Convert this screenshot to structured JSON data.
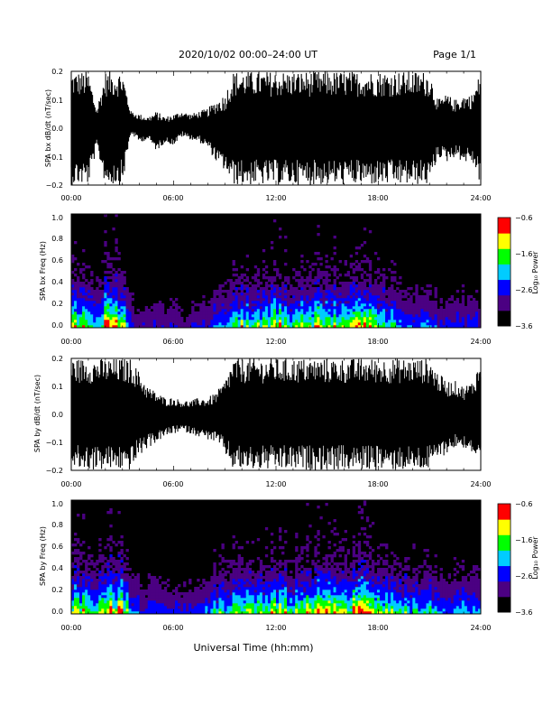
{
  "header": {
    "title": "2020/10/02  00:00–24:00 UT",
    "page": "Page 1/1"
  },
  "footer": {
    "xlabel": "Universal Time (hh:mm)"
  },
  "chart_data": [
    {
      "type": "line",
      "ylabel": "SPA bx dB/dt (nT/sec)",
      "xlabel": "",
      "xticks": [
        "00:00",
        "06:00",
        "12:00",
        "18:00",
        "24:00"
      ],
      "xlim": [
        0,
        24
      ],
      "ylim": [
        -0.2,
        0.2
      ],
      "yticks": [
        "0.2",
        "0.1",
        "0.0",
        "−0.1",
        "−0.2"
      ],
      "envelope": {
        "x": [
          0,
          0.5,
          1,
          1.5,
          2,
          2.5,
          3,
          3.5,
          4,
          4.5,
          5,
          5.5,
          6,
          6.5,
          7,
          7.5,
          8,
          8.5,
          9,
          9.5,
          10,
          10.5,
          11,
          11.5,
          12,
          12.5,
          13,
          13.5,
          14,
          14.5,
          15,
          15.5,
          16,
          16.5,
          17,
          17.5,
          18,
          18.5,
          19,
          19.5,
          20,
          20.5,
          21,
          21.5,
          22,
          22.5,
          23,
          23.5,
          24
        ],
        "upper": [
          0.2,
          0.2,
          0.2,
          0.07,
          0.2,
          0.2,
          0.2,
          0.06,
          0.05,
          0.04,
          0.06,
          0.04,
          0.05,
          0.06,
          0.05,
          0.06,
          0.07,
          0.1,
          0.12,
          0.2,
          0.2,
          0.2,
          0.2,
          0.2,
          0.2,
          0.2,
          0.2,
          0.2,
          0.2,
          0.2,
          0.2,
          0.2,
          0.2,
          0.2,
          0.2,
          0.2,
          0.2,
          0.2,
          0.2,
          0.2,
          0.2,
          0.2,
          0.2,
          0.1,
          0.12,
          0.1,
          0.12,
          0.12,
          0.2
        ],
        "lower": [
          -0.2,
          -0.2,
          -0.2,
          -0.07,
          -0.2,
          -0.2,
          -0.2,
          -0.02,
          -0.05,
          -0.04,
          -0.08,
          -0.05,
          -0.06,
          -0.03,
          -0.04,
          -0.05,
          -0.07,
          -0.12,
          -0.15,
          -0.2,
          -0.2,
          -0.2,
          -0.2,
          -0.2,
          -0.2,
          -0.2,
          -0.2,
          -0.2,
          -0.2,
          -0.2,
          -0.2,
          -0.2,
          -0.2,
          -0.2,
          -0.2,
          -0.2,
          -0.2,
          -0.2,
          -0.2,
          -0.2,
          -0.2,
          -0.2,
          -0.2,
          -0.1,
          -0.12,
          -0.1,
          -0.12,
          -0.12,
          -0.2
        ]
      }
    },
    {
      "type": "heatmap",
      "ylabel": "SPA bx Freq (Hz)",
      "xlabel": "",
      "xticks": [
        "00:00",
        "06:00",
        "12:00",
        "18:00",
        "24:00"
      ],
      "xlim": [
        0,
        24
      ],
      "ylim": [
        0,
        1
      ],
      "yticks": [
        "1.0",
        "0.8",
        "0.6",
        "0.4",
        "0.2",
        "0.0"
      ],
      "colorbar": {
        "label": "Log₁₀ Power",
        "ticks": [
          "−0.6",
          "−1.6",
          "−2.6",
          "−3.6"
        ],
        "range": [
          -3.6,
          -0.6
        ]
      },
      "colors": [
        "#000000",
        "#4b0082",
        "#0000ff",
        "#00ccff",
        "#00ff00",
        "#ffff00",
        "#ff0000"
      ],
      "activity": {
        "x": [
          0,
          0.5,
          1,
          1.5,
          2,
          2.5,
          3,
          3.5,
          4,
          4.5,
          5,
          5.5,
          6,
          6.5,
          7,
          7.5,
          8,
          8.5,
          9,
          9.5,
          10,
          10.5,
          11,
          11.5,
          12,
          12.5,
          13,
          13.5,
          14,
          14.5,
          15,
          15.5,
          16,
          16.5,
          17,
          17.5,
          18,
          18.5,
          19,
          19.5,
          20,
          20.5,
          21,
          21.5,
          22,
          22.5,
          23,
          23.5,
          24
        ],
        "level": [
          0.7,
          0.9,
          0.6,
          0.4,
          0.95,
          1.0,
          0.85,
          0.3,
          0.25,
          0.2,
          0.3,
          0.2,
          0.25,
          0.2,
          0.2,
          0.25,
          0.3,
          0.45,
          0.5,
          0.6,
          0.7,
          0.65,
          0.6,
          0.7,
          0.8,
          0.7,
          0.6,
          0.7,
          0.75,
          0.8,
          0.8,
          0.75,
          0.8,
          0.85,
          0.9,
          0.85,
          0.7,
          0.6,
          0.5,
          0.35,
          0.35,
          0.35,
          0.4,
          0.3,
          0.3,
          0.3,
          0.3,
          0.3,
          0.3
        ]
      }
    },
    {
      "type": "line",
      "ylabel": "SPA by dB/dt (nT/sec)",
      "xlabel": "",
      "xticks": [
        "00:00",
        "06:00",
        "12:00",
        "18:00",
        "24:00"
      ],
      "xlim": [
        0,
        24
      ],
      "ylim": [
        -0.2,
        0.2
      ],
      "yticks": [
        "0.2",
        "0.1",
        "0.0",
        "−0.1",
        "−0.2"
      ],
      "envelope": {
        "x": [
          0,
          0.5,
          1,
          1.5,
          2,
          2.5,
          3,
          3.5,
          4,
          4.5,
          5,
          5.5,
          6,
          6.5,
          7,
          7.5,
          8,
          8.5,
          9,
          9.5,
          10,
          10.5,
          11,
          11.5,
          12,
          12.5,
          13,
          13.5,
          14,
          14.5,
          15,
          15.5,
          16,
          16.5,
          17,
          17.5,
          18,
          18.5,
          19,
          19.5,
          20,
          20.5,
          21,
          21.5,
          22,
          22.5,
          23,
          23.5,
          24
        ],
        "upper": [
          0.2,
          0.2,
          0.2,
          0.2,
          0.2,
          0.2,
          0.2,
          0.2,
          0.15,
          0.1,
          0.08,
          0.06,
          0.06,
          0.05,
          0.05,
          0.06,
          0.06,
          0.08,
          0.12,
          0.2,
          0.2,
          0.2,
          0.2,
          0.2,
          0.2,
          0.2,
          0.2,
          0.2,
          0.2,
          0.2,
          0.2,
          0.2,
          0.2,
          0.2,
          0.2,
          0.2,
          0.2,
          0.2,
          0.2,
          0.2,
          0.2,
          0.2,
          0.2,
          0.15,
          0.12,
          0.12,
          0.1,
          0.12,
          0.2
        ],
        "lower": [
          -0.2,
          -0.2,
          -0.2,
          -0.2,
          -0.2,
          -0.2,
          -0.2,
          -0.2,
          -0.15,
          -0.12,
          -0.1,
          -0.08,
          -0.07,
          -0.06,
          -0.07,
          -0.08,
          -0.09,
          -0.1,
          -0.14,
          -0.2,
          -0.2,
          -0.2,
          -0.2,
          -0.2,
          -0.2,
          -0.2,
          -0.2,
          -0.2,
          -0.2,
          -0.2,
          -0.2,
          -0.2,
          -0.2,
          -0.2,
          -0.2,
          -0.2,
          -0.2,
          -0.2,
          -0.2,
          -0.2,
          -0.2,
          -0.2,
          -0.2,
          -0.16,
          -0.14,
          -0.12,
          -0.12,
          -0.14,
          -0.2
        ]
      }
    },
    {
      "type": "heatmap",
      "ylabel": "SPA by Freq (Hz)",
      "xlabel": "",
      "xticks": [
        "00:00",
        "06:00",
        "12:00",
        "18:00",
        "24:00"
      ],
      "xlim": [
        0,
        24
      ],
      "ylim": [
        0,
        1
      ],
      "yticks": [
        "1.0",
        "0.8",
        "0.6",
        "0.4",
        "0.2",
        "0.0"
      ],
      "colorbar": {
        "label": "Log₁₀ Power",
        "ticks": [
          "−0.6",
          "−1.6",
          "−2.6",
          "−3.6"
        ],
        "range": [
          -3.6,
          -0.6
        ]
      },
      "colors": [
        "#000000",
        "#4b0082",
        "#0000ff",
        "#00ccff",
        "#00ff00",
        "#ffff00",
        "#ff0000"
      ],
      "activity": {
        "x": [
          0,
          0.5,
          1,
          1.5,
          2,
          2.5,
          3,
          3.5,
          4,
          4.5,
          5,
          5.5,
          6,
          6.5,
          7,
          7.5,
          8,
          8.5,
          9,
          9.5,
          10,
          10.5,
          11,
          11.5,
          12,
          12.5,
          13,
          13.5,
          14,
          14.5,
          15,
          15.5,
          16,
          16.5,
          17,
          17.5,
          18,
          18.5,
          19,
          19.5,
          20,
          20.5,
          21,
          21.5,
          22,
          22.5,
          23,
          23.5,
          24
        ],
        "level": [
          0.8,
          0.9,
          0.7,
          0.6,
          0.95,
          1.0,
          0.85,
          0.45,
          0.35,
          0.3,
          0.35,
          0.3,
          0.3,
          0.3,
          0.3,
          0.35,
          0.4,
          0.55,
          0.55,
          0.65,
          0.75,
          0.7,
          0.65,
          0.7,
          0.8,
          0.75,
          0.65,
          0.7,
          0.8,
          0.85,
          0.85,
          0.8,
          0.8,
          0.85,
          0.9,
          0.85,
          0.75,
          0.7,
          0.6,
          0.55,
          0.55,
          0.55,
          0.6,
          0.45,
          0.45,
          0.45,
          0.45,
          0.45,
          0.45
        ]
      }
    }
  ]
}
